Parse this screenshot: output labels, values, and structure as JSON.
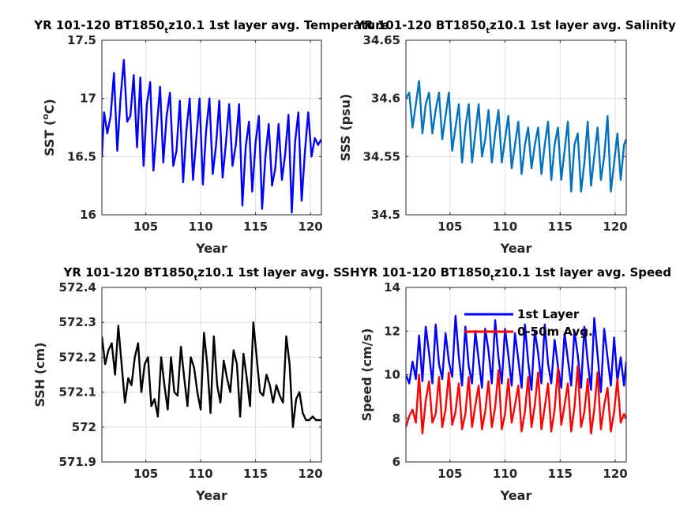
{
  "chart_data": [
    {
      "type": "line",
      "title": "YR 101-120 BT1850",
      "title_sub": "t",
      "title_rest": "z10.1 1st layer avg. Temperature",
      "xlabel": "Year",
      "ylabel": "SST (",
      "ylabel_sup": "o",
      "ylabel_end": "C)",
      "xlim": [
        101,
        121
      ],
      "ylim": [
        16,
        17.5
      ],
      "xticks": [
        105,
        110,
        115,
        120
      ],
      "yticks": [
        16,
        16.5,
        17,
        17.5
      ],
      "xticklabels": [
        "105",
        "110",
        "115",
        "120"
      ],
      "yticklabels": [
        "16",
        "16.5",
        "17",
        "17.5"
      ],
      "grid": true,
      "series": [
        {
          "color": "#0000ff",
          "x": [
            101.0,
            101.2,
            101.5,
            101.8,
            102.1,
            102.4,
            102.7,
            103.0,
            103.3,
            103.6,
            103.9,
            104.2,
            104.5,
            104.8,
            105.1,
            105.4,
            105.7,
            106.0,
            106.3,
            106.6,
            106.9,
            107.2,
            107.5,
            107.8,
            108.1,
            108.4,
            108.7,
            109.0,
            109.3,
            109.6,
            109.9,
            110.2,
            110.5,
            110.8,
            111.1,
            111.4,
            111.7,
            112.0,
            112.3,
            112.6,
            112.9,
            113.2,
            113.5,
            113.8,
            114.1,
            114.4,
            114.7,
            115.0,
            115.3,
            115.6,
            115.9,
            116.2,
            116.5,
            116.8,
            117.1,
            117.4,
            117.7,
            118.0,
            118.3,
            118.6,
            118.9,
            119.2,
            119.5,
            119.8,
            120.1,
            120.4,
            120.7,
            121.0
          ],
          "y": [
            16.5,
            16.88,
            16.7,
            16.85,
            17.22,
            16.55,
            17.0,
            17.33,
            16.8,
            16.85,
            17.2,
            16.58,
            17.18,
            16.42,
            16.95,
            17.14,
            16.38,
            16.75,
            17.1,
            16.45,
            16.85,
            17.05,
            16.42,
            16.55,
            16.98,
            16.28,
            16.72,
            17.0,
            16.3,
            16.65,
            17.0,
            16.26,
            16.72,
            17.0,
            16.35,
            16.6,
            16.98,
            16.32,
            16.62,
            16.95,
            16.42,
            16.6,
            16.95,
            16.08,
            16.58,
            16.8,
            16.2,
            16.62,
            16.85,
            16.05,
            16.5,
            16.78,
            16.25,
            16.4,
            16.78,
            16.3,
            16.52,
            16.86,
            16.02,
            16.62,
            16.88,
            16.12,
            16.55,
            16.88,
            16.5,
            16.66,
            16.6,
            16.65
          ]
        }
      ]
    },
    {
      "type": "line",
      "title": "YR 101-120 BT1850",
      "title_sub": "t",
      "title_rest": "z10.1 1st layer avg. Salinity",
      "xlabel": "Year",
      "ylabel": "SSS (psu)",
      "xlim": [
        101,
        121
      ],
      "ylim": [
        34.5,
        34.65
      ],
      "xticks": [
        105,
        110,
        115,
        120
      ],
      "yticks": [
        34.5,
        34.55,
        34.6,
        34.65
      ],
      "xticklabels": [
        "105",
        "110",
        "115",
        "120"
      ],
      "yticklabels": [
        "34.5",
        "34.55",
        "34.6",
        "34.65"
      ],
      "grid": true,
      "series": [
        {
          "color": "#0072bd",
          "x": [
            101.0,
            101.3,
            101.6,
            101.9,
            102.2,
            102.5,
            102.8,
            103.1,
            103.4,
            103.7,
            104.0,
            104.3,
            104.6,
            104.9,
            105.2,
            105.5,
            105.8,
            106.1,
            106.4,
            106.7,
            107.0,
            107.3,
            107.6,
            107.9,
            108.2,
            108.5,
            108.8,
            109.1,
            109.4,
            109.7,
            110.0,
            110.3,
            110.6,
            110.9,
            111.2,
            111.5,
            111.8,
            112.1,
            112.4,
            112.7,
            113.0,
            113.3,
            113.6,
            113.9,
            114.2,
            114.5,
            114.8,
            115.1,
            115.4,
            115.7,
            116.0,
            116.3,
            116.6,
            116.9,
            117.2,
            117.5,
            117.8,
            118.1,
            118.4,
            118.7,
            119.0,
            119.3,
            119.6,
            119.9,
            120.2,
            120.5,
            120.8,
            121.0
          ],
          "y": [
            34.6,
            34.605,
            34.575,
            34.595,
            34.615,
            34.57,
            34.595,
            34.605,
            34.57,
            34.59,
            34.605,
            34.565,
            34.585,
            34.605,
            34.555,
            34.575,
            34.595,
            34.545,
            34.575,
            34.595,
            34.545,
            34.57,
            34.595,
            34.55,
            34.565,
            34.59,
            34.545,
            34.57,
            34.59,
            34.545,
            34.565,
            34.585,
            34.54,
            34.56,
            34.58,
            34.535,
            34.56,
            34.575,
            34.54,
            34.56,
            34.575,
            34.535,
            34.56,
            34.58,
            34.53,
            34.56,
            34.575,
            34.53,
            34.555,
            34.58,
            34.52,
            34.56,
            34.57,
            34.52,
            34.545,
            34.58,
            34.525,
            34.55,
            34.575,
            34.53,
            34.55,
            34.585,
            34.52,
            34.545,
            34.57,
            34.53,
            34.56,
            34.565
          ]
        }
      ]
    },
    {
      "type": "line",
      "title": "YR 101-120 BT1850",
      "title_sub": "t",
      "title_rest": "z10.1 1st layer avg. SSH",
      "xlabel": "Year",
      "ylabel": "SSH (cm)",
      "xlim": [
        101,
        121
      ],
      "ylim": [
        571.9,
        572.4
      ],
      "xticks": [
        105,
        110,
        115,
        120
      ],
      "yticks": [
        571.9,
        572,
        572.1,
        572.2,
        572.3,
        572.4
      ],
      "xticklabels": [
        "105",
        "110",
        "115",
        "120"
      ],
      "yticklabels": [
        "571.9",
        "572",
        "572.1",
        "572.2",
        "572.3",
        "572.4"
      ],
      "grid": true,
      "series": [
        {
          "color": "#000000",
          "x": [
            101.0,
            101.3,
            101.6,
            101.9,
            102.2,
            102.5,
            102.8,
            103.1,
            103.4,
            103.7,
            104.0,
            104.3,
            104.6,
            104.9,
            105.2,
            105.5,
            105.8,
            106.1,
            106.4,
            106.7,
            107.0,
            107.3,
            107.6,
            107.9,
            108.2,
            108.5,
            108.8,
            109.1,
            109.4,
            109.7,
            110.0,
            110.3,
            110.6,
            110.9,
            111.2,
            111.5,
            111.8,
            112.1,
            112.4,
            112.7,
            113.0,
            113.3,
            113.6,
            113.9,
            114.2,
            114.5,
            114.8,
            115.1,
            115.4,
            115.7,
            116.0,
            116.3,
            116.6,
            116.9,
            117.2,
            117.5,
            117.8,
            118.1,
            118.4,
            118.7,
            119.0,
            119.3,
            119.6,
            119.9,
            120.2,
            120.5,
            120.8,
            121.0
          ],
          "y": [
            572.26,
            572.18,
            572.22,
            572.24,
            572.15,
            572.29,
            572.18,
            572.07,
            572.14,
            572.12,
            572.2,
            572.24,
            572.1,
            572.18,
            572.2,
            572.06,
            572.08,
            572.03,
            572.2,
            572.12,
            572.05,
            572.2,
            572.1,
            572.09,
            572.23,
            572.14,
            572.06,
            572.2,
            572.17,
            572.1,
            572.05,
            572.27,
            572.18,
            572.04,
            572.26,
            572.12,
            572.07,
            572.19,
            572.14,
            572.1,
            572.22,
            572.18,
            572.03,
            572.21,
            572.14,
            572.06,
            572.3,
            572.2,
            572.1,
            572.09,
            572.15,
            572.12,
            572.07,
            572.12,
            572.09,
            572.07,
            572.26,
            572.18,
            572.0,
            572.08,
            572.1,
            572.04,
            572.02,
            572.02,
            572.03,
            572.02,
            572.02,
            572.02
          ]
        }
      ]
    },
    {
      "type": "line",
      "title": "YR 101-120 BT1850",
      "title_sub": "t",
      "title_rest": "z10.1 1st layer avg. Speed",
      "xlabel": "Year",
      "ylabel": "Speed (cm/s)",
      "xlim": [
        101,
        121
      ],
      "ylim": [
        6,
        14
      ],
      "xticks": [
        105,
        110,
        115,
        120
      ],
      "yticks": [
        6,
        8,
        10,
        12,
        14
      ],
      "xticklabels": [
        "105",
        "110",
        "115",
        "120"
      ],
      "yticklabels": [
        "6",
        "8",
        "10",
        "12",
        "14"
      ],
      "grid": true,
      "legend_position": "top-center",
      "series": [
        {
          "name": "1st Layer",
          "color": "#0000ff",
          "x": [
            101.0,
            101.3,
            101.6,
            101.9,
            102.2,
            102.5,
            102.8,
            103.1,
            103.4,
            103.7,
            104.0,
            104.3,
            104.6,
            104.9,
            105.2,
            105.5,
            105.8,
            106.1,
            106.4,
            106.7,
            107.0,
            107.3,
            107.6,
            107.9,
            108.2,
            108.5,
            108.8,
            109.1,
            109.4,
            109.7,
            110.0,
            110.3,
            110.6,
            110.9,
            111.2,
            111.5,
            111.8,
            112.1,
            112.4,
            112.7,
            113.0,
            113.3,
            113.6,
            113.9,
            114.2,
            114.5,
            114.8,
            115.1,
            115.4,
            115.7,
            116.0,
            116.3,
            116.6,
            116.9,
            117.2,
            117.5,
            117.8,
            118.1,
            118.4,
            118.7,
            119.0,
            119.3,
            119.6,
            119.9,
            120.2,
            120.5,
            120.8,
            121.0
          ],
          "y": [
            10.0,
            9.6,
            10.6,
            9.8,
            11.8,
            9.7,
            12.2,
            11.0,
            9.6,
            12.3,
            10.5,
            9.8,
            11.9,
            10.6,
            9.9,
            12.7,
            10.8,
            9.5,
            12.2,
            10.4,
            9.6,
            12.0,
            10.7,
            9.4,
            12.1,
            11.1,
            9.6,
            12.5,
            10.8,
            9.6,
            12.1,
            10.9,
            9.5,
            11.9,
            10.7,
            9.4,
            12.3,
            10.6,
            9.3,
            12.0,
            11.0,
            9.6,
            12.3,
            10.5,
            9.6,
            11.6,
            10.4,
            9.4,
            11.9,
            10.7,
            9.5,
            12.0,
            10.9,
            9.4,
            12.2,
            10.6,
            9.3,
            12.6,
            10.9,
            9.2,
            12.1,
            10.8,
            9.5,
            11.7,
            9.7,
            10.8,
            9.5,
            10.6
          ]
        },
        {
          "name": "0-50m Avg.",
          "color": "#ff0000",
          "x": [
            101.0,
            101.3,
            101.6,
            101.9,
            102.2,
            102.5,
            102.8,
            103.1,
            103.4,
            103.7,
            104.0,
            104.3,
            104.6,
            104.9,
            105.2,
            105.5,
            105.8,
            106.1,
            106.4,
            106.7,
            107.0,
            107.3,
            107.6,
            107.9,
            108.2,
            108.5,
            108.8,
            109.1,
            109.4,
            109.7,
            110.0,
            110.3,
            110.6,
            110.9,
            111.2,
            111.5,
            111.8,
            112.1,
            112.4,
            112.7,
            113.0,
            113.3,
            113.6,
            113.9,
            114.2,
            114.5,
            114.8,
            115.1,
            115.4,
            115.7,
            116.0,
            116.3,
            116.6,
            116.9,
            117.2,
            117.5,
            117.8,
            118.1,
            118.4,
            118.7,
            119.0,
            119.3,
            119.6,
            119.9,
            120.2,
            120.5,
            120.8,
            121.0
          ],
          "y": [
            7.6,
            8.1,
            8.4,
            7.8,
            10.0,
            7.3,
            8.8,
            9.7,
            7.8,
            8.2,
            9.9,
            7.6,
            8.4,
            10.1,
            7.7,
            8.3,
            9.6,
            7.5,
            8.2,
            9.9,
            7.6,
            8.6,
            9.5,
            7.5,
            8.3,
            9.7,
            7.6,
            8.5,
            10.2,
            7.5,
            8.2,
            9.8,
            7.8,
            8.6,
            9.5,
            7.4,
            8.3,
            9.9,
            7.6,
            8.6,
            10.1,
            7.5,
            8.5,
            9.6,
            7.4,
            8.4,
            10.3,
            7.7,
            8.6,
            9.6,
            7.4,
            8.5,
            10.4,
            7.6,
            8.3,
            9.8,
            7.3,
            8.4,
            10.1,
            7.5,
            8.6,
            9.4,
            7.4,
            8.3,
            9.8,
            7.8,
            8.2,
            8.0
          ]
        }
      ]
    }
  ]
}
